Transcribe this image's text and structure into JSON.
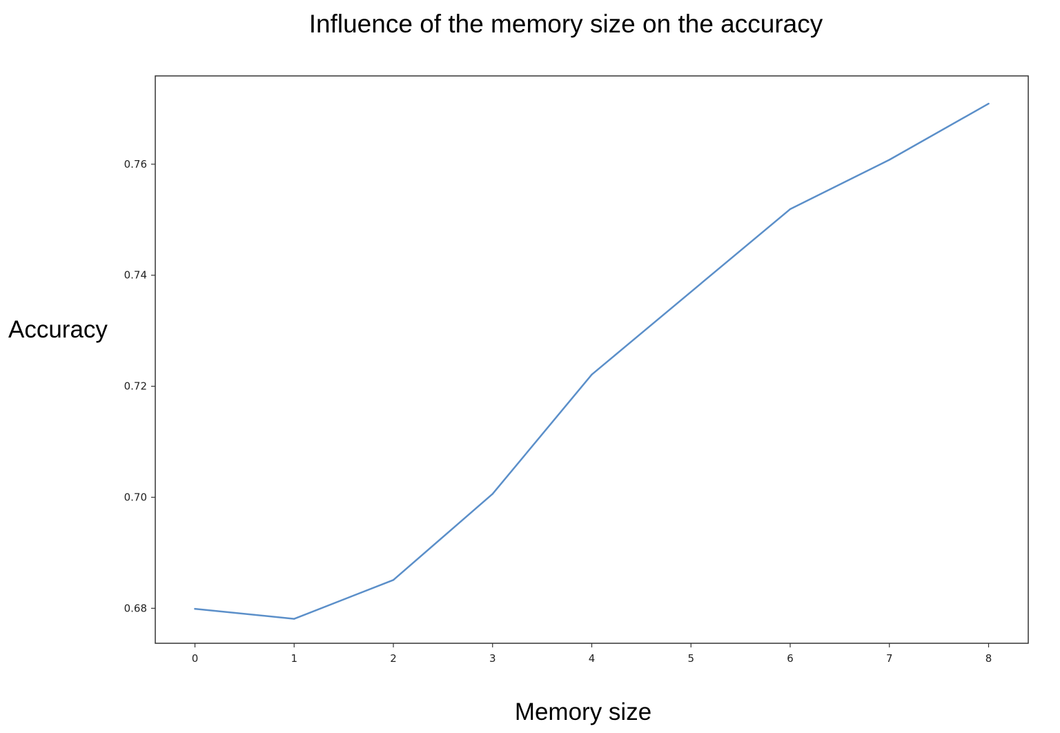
{
  "chart_data": {
    "type": "line",
    "title": "Influence of the memory size on the accuracy",
    "xlabel": "Memory size",
    "ylabel": "Accuracy",
    "x": [
      0,
      1,
      2,
      3,
      4,
      6,
      7,
      8
    ],
    "series": [
      {
        "values": [
          0.6799,
          0.6781,
          0.6851,
          0.7006,
          0.7221,
          0.7519,
          0.7608,
          0.7709
        ],
        "color": "#5b8fc9"
      }
    ],
    "xticks": [
      "0",
      "1",
      "2",
      "3",
      "4",
      "5",
      "6",
      "7",
      "8"
    ],
    "yticks": [
      "0.68",
      "0.70",
      "0.72",
      "0.74",
      "0.76"
    ],
    "xlim": [
      -0.4,
      8.4
    ],
    "ylim": [
      0.6737,
      0.7759
    ],
    "grid": false,
    "legend": "none"
  }
}
